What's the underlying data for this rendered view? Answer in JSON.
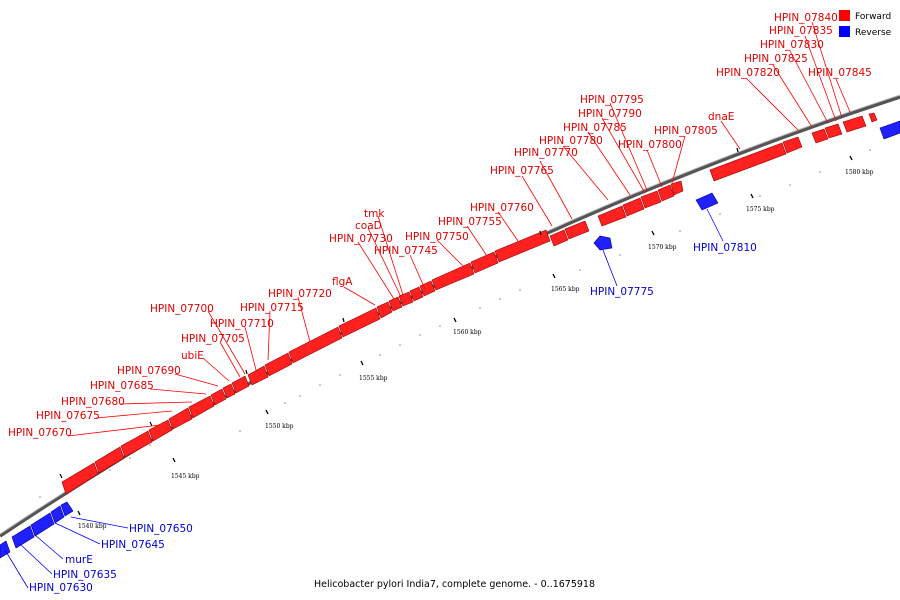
{
  "caption": "Helicobacter pylori India7, complete genome. - 0..1675918",
  "legend": {
    "forward_label": "Forward",
    "reverse_label": "Reverse",
    "forward_color": "#ff0000",
    "reverse_color": "#0000ff"
  },
  "scale_ticks": [
    "1540 kbp",
    "1545 kbp",
    "1550 kbp",
    "1555 kbp",
    "1560 kbp",
    "1565 kbp",
    "1570 kbp",
    "1575 kbp",
    "1580 kbp"
  ],
  "forward_genes": [
    "HPIN_07670",
    "HPIN_07675",
    "HPIN_07680",
    "HPIN_07685",
    "HPIN_07690",
    "ubiE",
    "HPIN_07705",
    "HPIN_07710",
    "HPIN_07700",
    "HPIN_07715",
    "HPIN_07720",
    "flgA",
    "HPIN_07730",
    "coaD",
    "tmk",
    "HPIN_07745",
    "HPIN_07750",
    "HPIN_07755",
    "HPIN_07760",
    "HPIN_07765",
    "HPIN_07770",
    "HPIN_07780",
    "HPIN_07785",
    "HPIN_07790",
    "HPIN_07795",
    "HPIN_07800",
    "HPIN_07805",
    "dnaE",
    "HPIN_07820",
    "HPIN_07825",
    "HPIN_07830",
    "HPIN_07835",
    "HPIN_07840",
    "HPIN_07845"
  ],
  "reverse_genes": [
    "HPIN_07650",
    "HPIN_07645",
    "murE",
    "HPIN_07635",
    "HPIN_07630",
    "HPIN_07775",
    "HPIN_07810"
  ]
}
